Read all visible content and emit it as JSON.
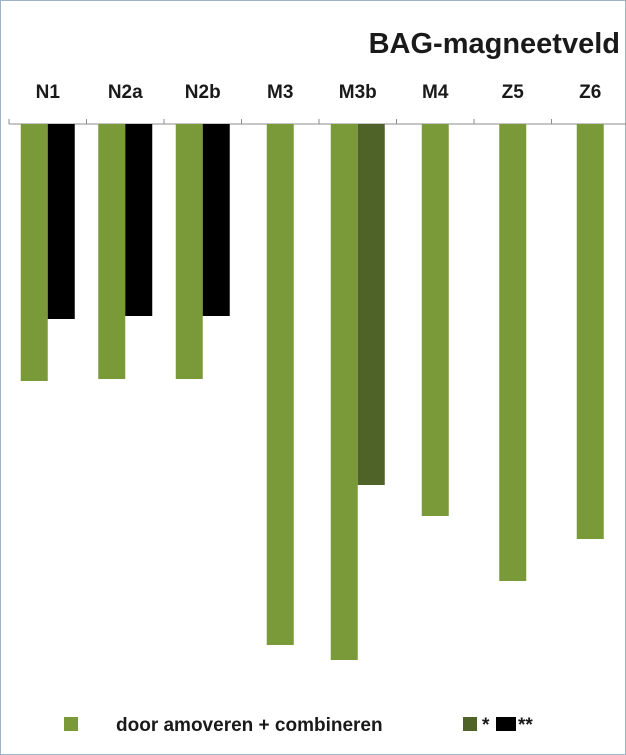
{
  "chart_data": {
    "type": "bar",
    "orientation": "inverted",
    "title": "BAG-magneetveld",
    "categories": [
      "N1",
      "N2a",
      "N2b",
      "M3",
      "M3b",
      "M4",
      "Z5",
      "Z6"
    ],
    "series": [
      {
        "name": "door amoveren + combineren",
        "color": "#7a9a3a",
        "values": [
          257,
          255,
          255,
          521,
          536,
          392,
          457,
          415
        ]
      },
      {
        "name": "*",
        "color": "#4f6228",
        "values": [
          null,
          null,
          null,
          null,
          361,
          null,
          null,
          null
        ]
      },
      {
        "name": "**",
        "color": "#000000",
        "values": [
          195,
          192,
          192,
          null,
          null,
          null,
          null,
          null
        ]
      }
    ],
    "ylim": [
      0,
      620
    ],
    "axis_position": "top",
    "legend_position": "bottom",
    "grid": false
  }
}
